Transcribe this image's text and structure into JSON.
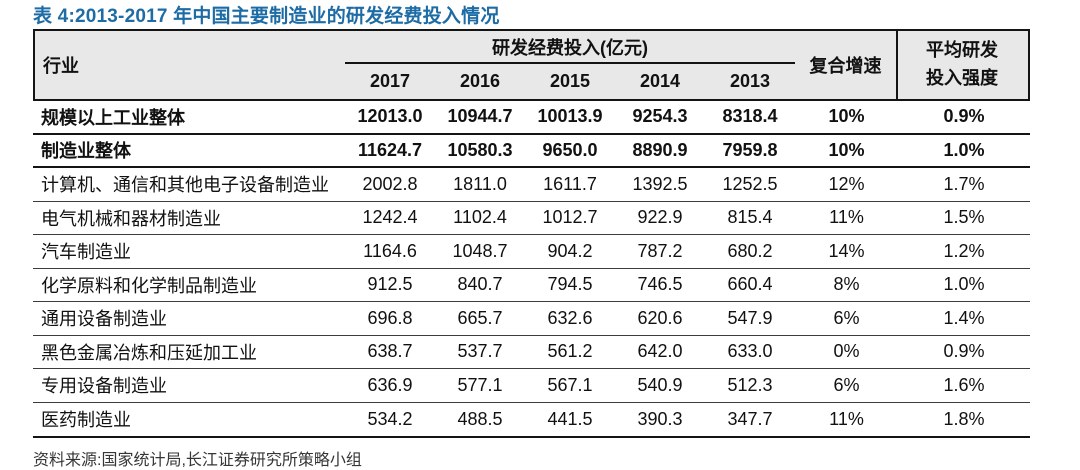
{
  "title": "表 4:2013-2017 年中国主要制造业的研发经费投入情况",
  "source": "资料来源:国家统计局,长江证券研究所策略小组",
  "colors": {
    "title_blue": "#1D6CA5",
    "header_bg": "#E8E8E8",
    "border_dark": "#141414"
  },
  "table": {
    "col_industry": "行业",
    "group_header": "研发经费投入(亿元)",
    "years": [
      "2017",
      "2016",
      "2015",
      "2014",
      "2013"
    ],
    "col_cagr": "复合增速",
    "col_intensity_line1": "平均研发",
    "col_intensity_line2": "投入强度",
    "rows": [
      {
        "name": "规模以上工业整体",
        "values": [
          "12013.0",
          "10944.7",
          "10013.9",
          "9254.3",
          "8318.4"
        ],
        "cagr": "10%",
        "intensity": "0.9%",
        "bold": true
      },
      {
        "name": "制造业整体",
        "values": [
          "11624.7",
          "10580.3",
          "9650.0",
          "8890.9",
          "7959.8"
        ],
        "cagr": "10%",
        "intensity": "1.0%",
        "bold": true
      },
      {
        "name": "计算机、通信和其他电子设备制造业",
        "values": [
          "2002.8",
          "1811.0",
          "1611.7",
          "1392.5",
          "1252.5"
        ],
        "cagr": "12%",
        "intensity": "1.7%",
        "bold": false
      },
      {
        "name": "电气机械和器材制造业",
        "values": [
          "1242.4",
          "1102.4",
          "1012.7",
          "922.9",
          "815.4"
        ],
        "cagr": "11%",
        "intensity": "1.5%",
        "bold": false
      },
      {
        "name": "汽车制造业",
        "values": [
          "1164.6",
          "1048.7",
          "904.2",
          "787.2",
          "680.2"
        ],
        "cagr": "14%",
        "intensity": "1.2%",
        "bold": false
      },
      {
        "name": "化学原料和化学制品制造业",
        "values": [
          "912.5",
          "840.7",
          "794.5",
          "746.5",
          "660.4"
        ],
        "cagr": "8%",
        "intensity": "1.0%",
        "bold": false
      },
      {
        "name": "通用设备制造业",
        "values": [
          "696.8",
          "665.7",
          "632.6",
          "620.6",
          "547.9"
        ],
        "cagr": "6%",
        "intensity": "1.4%",
        "bold": false
      },
      {
        "name": "黑色金属冶炼和压延加工业",
        "values": [
          "638.7",
          "537.7",
          "561.2",
          "642.0",
          "633.0"
        ],
        "cagr": "0%",
        "intensity": "0.9%",
        "bold": false
      },
      {
        "name": "专用设备制造业",
        "values": [
          "636.9",
          "577.1",
          "567.1",
          "540.9",
          "512.3"
        ],
        "cagr": "6%",
        "intensity": "1.6%",
        "bold": false
      },
      {
        "name": "医药制造业",
        "values": [
          "534.2",
          "488.5",
          "441.5",
          "390.3",
          "347.7"
        ],
        "cagr": "11%",
        "intensity": "1.8%",
        "bold": false
      }
    ]
  }
}
